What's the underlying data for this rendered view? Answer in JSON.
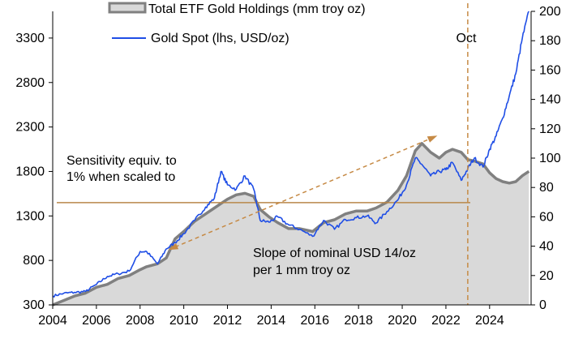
{
  "chart_data": {
    "type": "line",
    "x": [
      2004.0,
      2004.5,
      2005.0,
      2005.5,
      2006.0,
      2006.5,
      2007.0,
      2007.5,
      2008.0,
      2008.3,
      2008.8,
      2009.2,
      2009.6,
      2010.0,
      2010.5,
      2011.0,
      2011.4,
      2011.7,
      2012.0,
      2012.4,
      2012.8,
      2013.2,
      2013.5,
      2013.9,
      2014.3,
      2014.8,
      2015.3,
      2015.9,
      2016.4,
      2016.9,
      2017.4,
      2017.9,
      2018.4,
      2018.8,
      2019.3,
      2019.8,
      2020.2,
      2020.6,
      2020.9,
      2021.3,
      2021.7,
      2022.0,
      2022.3,
      2022.7,
      2023.0,
      2023.3,
      2023.7,
      2024.0,
      2024.3,
      2024.6,
      2024.9,
      2025.2,
      2025.5,
      2025.8
    ],
    "series": [
      {
        "name": "Total ETF Gold Holdings (mm troy oz)",
        "axis": "right",
        "style": "area",
        "color": "#808080",
        "fill": "#d9d9d9",
        "values": [
          0,
          3,
          6,
          8,
          12,
          14,
          18,
          20,
          24,
          26,
          28,
          32,
          45,
          50,
          57,
          62,
          66,
          69,
          72,
          75,
          76,
          74,
          65,
          60,
          56,
          52,
          52,
          50,
          56,
          58,
          62,
          64,
          64,
          66,
          70,
          78,
          88,
          105,
          110,
          104,
          100,
          104,
          106,
          104,
          99,
          98,
          96,
          90,
          86,
          84,
          83,
          84,
          88,
          91
        ]
      },
      {
        "name": "Gold Spot (lhs, USD/oz)",
        "axis": "left",
        "style": "line",
        "color": "#1f4ee6",
        "values": [
          400,
          430,
          440,
          450,
          530,
          620,
          650,
          680,
          900,
          900,
          760,
          930,
          1000,
          1100,
          1250,
          1400,
          1500,
          1800,
          1650,
          1600,
          1750,
          1600,
          1250,
          1230,
          1290,
          1200,
          1150,
          1070,
          1250,
          1150,
          1260,
          1280,
          1300,
          1220,
          1350,
          1480,
          1650,
          1950,
          1880,
          1750,
          1800,
          1820,
          1900,
          1700,
          1830,
          1950,
          1850,
          2050,
          2200,
          2400,
          2650,
          2900,
          3300,
          3600
        ]
      }
    ],
    "left_axis": {
      "ylim": [
        300,
        3600
      ],
      "ticks": [
        "300",
        "800",
        "1300",
        "1800",
        "2300",
        "2800",
        "3300"
      ]
    },
    "right_axis": {
      "ylim": [
        0,
        200
      ],
      "ticks": [
        "0",
        "20",
        "40",
        "60",
        "80",
        "100",
        "120",
        "140",
        "160",
        "180",
        "200"
      ]
    },
    "x_axis": {
      "xlim": [
        2004,
        2025.9
      ],
      "ticks": [
        "2004",
        "2006",
        "2008",
        "2010",
        "2012",
        "2014",
        "2016",
        "2018",
        "2020",
        "2022",
        "2024"
      ]
    },
    "reference_line": {
      "value": 1450,
      "axis": "left",
      "color": "#b9874a"
    },
    "event_marker": {
      "x": 2023.0,
      "label": "Oct",
      "color": "#c68a45"
    },
    "trend_arrow": {
      "from": [
        2009.6,
        950
      ],
      "to": [
        2021.3,
        2170
      ],
      "color": "#c68a45"
    },
    "annotations": {
      "sensitivity_line1": "Sensitivity equiv. to",
      "sensitivity_line2": "1% when scaled to",
      "slope_line1": "Slope of nominal USD 14/oz",
      "slope_line2": "per 1 mm troy oz"
    },
    "legend": [
      {
        "label": "Total ETF Gold Holdings (mm troy oz)",
        "kind": "area"
      },
      {
        "label": "Gold Spot (lhs, USD/oz)",
        "kind": "line"
      }
    ]
  }
}
